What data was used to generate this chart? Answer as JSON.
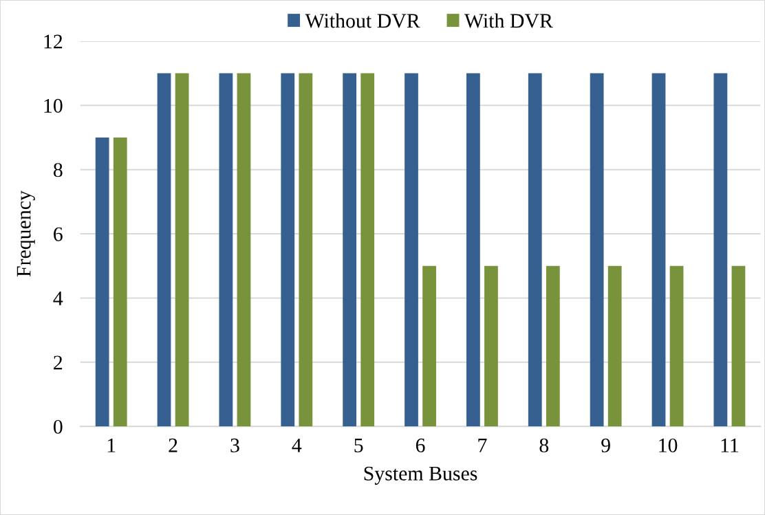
{
  "chart_data": {
    "type": "bar",
    "xlabel": "System Buses",
    "ylabel": "Frequency",
    "categories": [
      "1",
      "2",
      "3",
      "4",
      "5",
      "6",
      "7",
      "8",
      "9",
      "10",
      "11"
    ],
    "series": [
      {
        "name": "Without DVR",
        "color": "#35608f",
        "values": [
          9,
          11,
          11,
          11,
          11,
          11,
          11,
          11,
          11,
          11,
          11
        ]
      },
      {
        "name": "With DVR",
        "color": "#78933b",
        "values": [
          9,
          11,
          11,
          11,
          11,
          5,
          5,
          5,
          5,
          5,
          5
        ]
      }
    ],
    "ylim": [
      0,
      12
    ],
    "yticks": [
      0,
      2,
      4,
      6,
      8,
      10,
      12
    ],
    "grid": "y",
    "legend": "top"
  }
}
